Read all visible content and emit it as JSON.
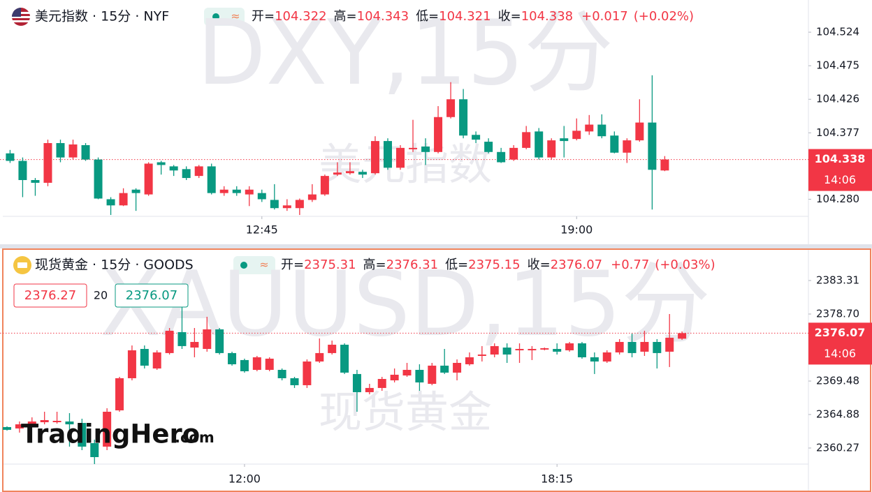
{
  "chart_data": [
    {
      "type": "candlestick",
      "title": "美元指数 · 15分 · NYF",
      "watermark": "DXY,15分",
      "watermark_sub": "美元指数",
      "ohlc_labels": [
        "开=",
        "高=",
        "低=",
        "收="
      ],
      "change": "+0.017",
      "change_pct": "(+0.02%)",
      "countdown": "14:06",
      "up_color": "#f23645",
      "down_color": "#089981",
      "xlim": [
        -0.8,
        63.3
      ],
      "xticks": [
        {
          "value": 20,
          "label": "12:45"
        },
        {
          "value": 45,
          "label": "19:00"
        }
      ],
      "ylim": [
        104.255,
        104.571
      ],
      "yticks": [
        104.524,
        104.475,
        104.426,
        104.377,
        {
          "value": 104.28,
          "label": "104.280"
        }
      ],
      "candles": [
        [
          104.347,
          104.352,
          104.333,
          104.336
        ],
        [
          104.336,
          104.341,
          104.283,
          104.308
        ],
        [
          104.308,
          104.311,
          104.285,
          104.304
        ],
        [
          104.304,
          104.367,
          104.299,
          104.362
        ],
        [
          104.362,
          104.367,
          104.334,
          104.341
        ],
        [
          104.341,
          104.367,
          104.338,
          104.36
        ],
        [
          104.359,
          104.362,
          104.336,
          104.338
        ],
        [
          104.338,
          104.341,
          104.28,
          104.281
        ],
        [
          104.28,
          104.283,
          104.257,
          104.271
        ],
        [
          104.271,
          104.296,
          104.27,
          104.289
        ],
        [
          104.294,
          104.296,
          104.263,
          104.289
        ],
        [
          104.287,
          104.334,
          104.285,
          104.332
        ],
        [
          104.334,
          104.336,
          104.316,
          104.33
        ],
        [
          104.328,
          104.33,
          104.314,
          104.322
        ],
        [
          104.324,
          104.328,
          104.308,
          104.311
        ],
        [
          104.314,
          104.33,
          104.311,
          104.328
        ],
        [
          104.328,
          104.332,
          104.287,
          104.289
        ],
        [
          104.289,
          104.299,
          104.285,
          104.294
        ],
        [
          104.294,
          104.299,
          104.285,
          104.289
        ],
        [
          104.287,
          104.299,
          104.27,
          104.294
        ],
        [
          104.289,
          104.294,
          104.276,
          104.28
        ],
        [
          104.279,
          104.302,
          104.265,
          104.267
        ],
        [
          104.267,
          104.28,
          104.263,
          104.271
        ],
        [
          104.267,
          104.281,
          104.257,
          104.279
        ],
        [
          104.279,
          104.302,
          104.276,
          104.287
        ],
        [
          104.287,
          104.316,
          104.285,
          104.314
        ],
        [
          104.316,
          104.334,
          104.314,
          104.319
        ],
        [
          104.318,
          104.334,
          104.316,
          104.321
        ],
        [
          104.32,
          104.323,
          104.311,
          104.316
        ],
        [
          104.318,
          104.372,
          104.316,
          104.365
        ],
        [
          104.365,
          104.369,
          104.323,
          104.326
        ],
        [
          104.326,
          104.359,
          104.323,
          104.355
        ],
        [
          104.353,
          104.396,
          104.349,
          104.355
        ],
        [
          104.357,
          104.369,
          104.33,
          104.349
        ],
        [
          104.349,
          104.416,
          104.347,
          104.4
        ],
        [
          104.4,
          104.451,
          104.398,
          104.426
        ],
        [
          104.426,
          104.441,
          104.369,
          104.373
        ],
        [
          104.374,
          104.379,
          104.362,
          104.367
        ],
        [
          104.364,
          104.369,
          104.347,
          104.349
        ],
        [
          104.349,
          104.355,
          104.333,
          104.334
        ],
        [
          104.338,
          104.359,
          104.336,
          104.355
        ],
        [
          104.355,
          104.387,
          104.353,
          104.378
        ],
        [
          104.379,
          104.384,
          104.338,
          104.341
        ],
        [
          104.341,
          104.369,
          104.338,
          104.366
        ],
        [
          104.369,
          104.387,
          104.341,
          104.365
        ],
        [
          104.368,
          104.398,
          104.366,
          104.38
        ],
        [
          104.379,
          104.403,
          104.374,
          104.389
        ],
        [
          104.389,
          104.404,
          104.369,
          104.372
        ],
        [
          104.373,
          104.379,
          104.347,
          104.348
        ],
        [
          104.348,
          104.369,
          104.333,
          104.366
        ],
        [
          104.366,
          104.426,
          104.364,
          104.392
        ],
        [
          104.392,
          104.461,
          104.265,
          104.323
        ],
        [
          104.322,
          104.343,
          104.321,
          104.338
        ]
      ]
    },
    {
      "type": "candlestick",
      "title": "现货黄金 · 15分 · GOODS",
      "watermark": "XAUUSD,15分",
      "watermark_sub": "现货黄金",
      "ohlc_labels": [
        "开=",
        "高=",
        "低=",
        "收="
      ],
      "change": "+0.77",
      "change_pct": "(+0.03%)",
      "countdown": "14:06",
      "quote": {
        "sell": 2376.27,
        "spread": 20
      },
      "up_color": "#f23645",
      "down_color": "#089981",
      "xlim": [
        -0.56,
        64
      ],
      "xticks": [
        {
          "value": 19,
          "label": "12:00"
        },
        {
          "value": 44,
          "label": "18:15"
        }
      ],
      "ylim": [
        2358.06,
        2387.53
      ],
      "yticks": [
        2383.31,
        {
          "value": 2378.7,
          "label": "2378.70"
        },
        2369.48,
        2364.88,
        2360.27
      ],
      "candles": [
        [
          2363.15,
          2363.25,
          2362.67,
          2362.77
        ],
        [
          2362.96,
          2363.92,
          2362.39,
          2363.53
        ],
        [
          2363.53,
          2364.49,
          2363.15,
          2363.92
        ],
        [
          2363.82,
          2365.26,
          2363.53,
          2364.11
        ],
        [
          2363.82,
          2365.26,
          2363.63,
          2364.01
        ],
        [
          2363.92,
          2365.07,
          2360.46,
          2363.53
        ],
        [
          2363.72,
          2364.3,
          2359.98,
          2360.46
        ],
        [
          2360.94,
          2361.42,
          2358.06,
          2359.02
        ],
        [
          2360.46,
          2365.74,
          2359.98,
          2365.26
        ],
        [
          2365.45,
          2370.06,
          2365.26,
          2369.87
        ],
        [
          2369.87,
          2374.38,
          2369.58,
          2373.71
        ],
        [
          2373.9,
          2374.38,
          2371.21,
          2371.6
        ],
        [
          2371.21,
          2373.71,
          2371.02,
          2373.42
        ],
        [
          2373.33,
          2376.78,
          2373.13,
          2376.4
        ],
        [
          2376.21,
          2379.66,
          2373.9,
          2374.29
        ],
        [
          2374.09,
          2376.78,
          2372.75,
          2374.86
        ],
        [
          2373.9,
          2378.32,
          2373.52,
          2376.59
        ],
        [
          2376.59,
          2376.78,
          2373.13,
          2373.33
        ],
        [
          2373.33,
          2373.52,
          2371.6,
          2371.79
        ],
        [
          2372.37,
          2372.56,
          2370.64,
          2370.83
        ],
        [
          2371.02,
          2372.94,
          2370.83,
          2372.75
        ],
        [
          2371.02,
          2372.75,
          2370.83,
          2372.56
        ],
        [
          2371.02,
          2371.21,
          2369.58,
          2369.87
        ],
        [
          2369.87,
          2370.06,
          2368.53,
          2368.91
        ],
        [
          2368.91,
          2372.46,
          2368.53,
          2372.17
        ],
        [
          2372.17,
          2375.34,
          2371.98,
          2373.33
        ],
        [
          2373.33,
          2375.05,
          2373.13,
          2374.48
        ],
        [
          2374.48,
          2374.67,
          2370.45,
          2370.64
        ],
        [
          2370.45,
          2371.02,
          2365.26,
          2367.95
        ],
        [
          2367.95,
          2369.1,
          2367.66,
          2368.53
        ],
        [
          2368.53,
          2370.06,
          2368.14,
          2369.77
        ],
        [
          2369.58,
          2371.21,
          2369.29,
          2370.35
        ],
        [
          2370.25,
          2371.98,
          2370.06,
          2371.02
        ],
        [
          2371.02,
          2371.79,
          2368.14,
          2369.29
        ],
        [
          2369.1,
          2371.98,
          2368.91,
          2371.6
        ],
        [
          2371.6,
          2373.9,
          2370.45,
          2370.64
        ],
        [
          2370.64,
          2372.46,
          2369.58,
          2371.98
        ],
        [
          2371.79,
          2373.42,
          2371.6,
          2372.75
        ],
        [
          2372.94,
          2374.29,
          2372.17,
          2373.13
        ],
        [
          2373.13,
          2374.67,
          2372.75,
          2374.29
        ],
        [
          2374.09,
          2374.67,
          2371.98,
          2373.13
        ],
        [
          2373.71,
          2374.67,
          2371.98,
          2373.9
        ],
        [
          2373.71,
          2374.29,
          2372.37,
          2373.9
        ],
        [
          2373.81,
          2374.09,
          2373.71,
          2374.0
        ],
        [
          2373.9,
          2374.67,
          2373.13,
          2373.52
        ],
        [
          2373.71,
          2374.86,
          2373.52,
          2374.67
        ],
        [
          2374.67,
          2374.86,
          2372.56,
          2372.75
        ],
        [
          2372.75,
          2373.42,
          2370.45,
          2372.17
        ],
        [
          2372.17,
          2373.71,
          2371.98,
          2373.42
        ],
        [
          2373.42,
          2375.25,
          2373.13,
          2374.86
        ],
        [
          2374.86,
          2376.01,
          2372.75,
          2373.33
        ],
        [
          2373.52,
          2376.4,
          2372.94,
          2374.86
        ],
        [
          2374.86,
          2375.25,
          2371.21,
          2373.33
        ],
        [
          2373.52,
          2378.7,
          2371.41,
          2375.44
        ],
        [
          2375.31,
          2376.31,
          2375.15,
          2376.07
        ]
      ]
    }
  ],
  "logo": {
    "name": "TradingHero",
    "suffix": ".com"
  }
}
